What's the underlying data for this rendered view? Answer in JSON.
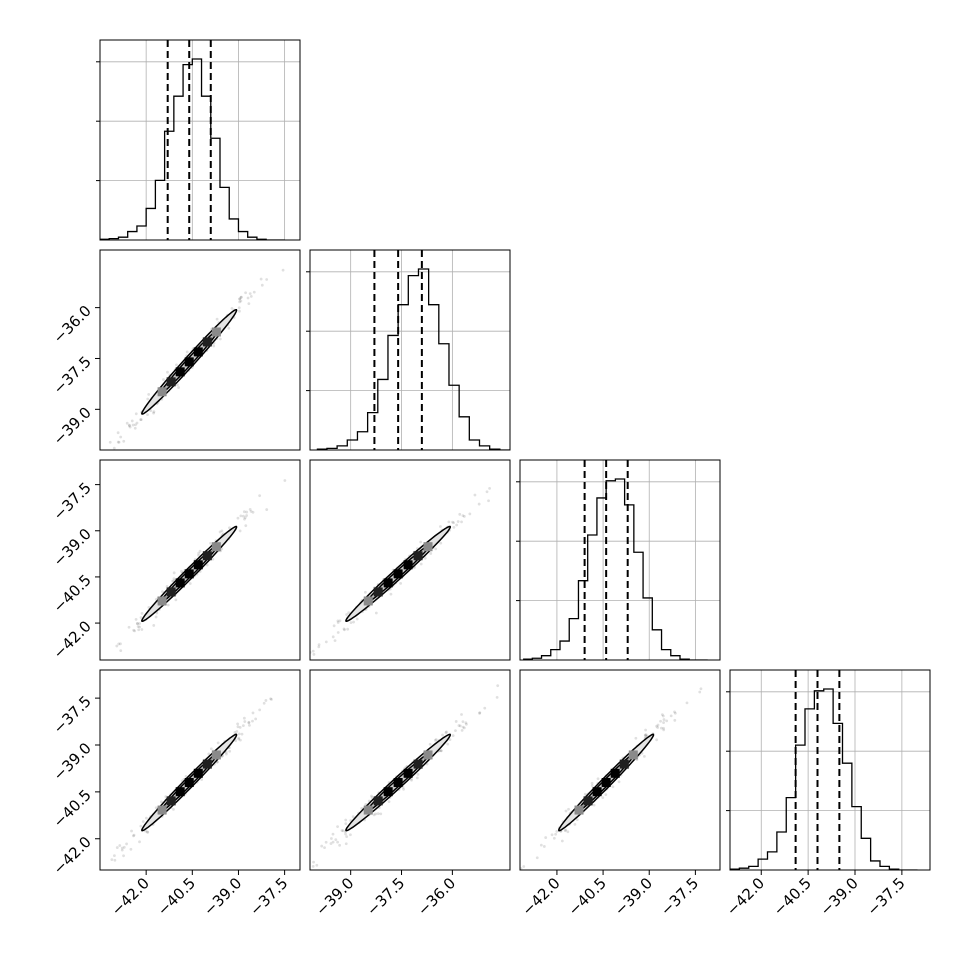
{
  "chart_data": {
    "type": "corner",
    "num_params": 4,
    "param_ranges": [
      [
        -43.5,
        -37.0
      ],
      [
        -40.2,
        -34.3
      ],
      [
        -43.2,
        -36.7
      ],
      [
        -43.0,
        -36.6
      ]
    ],
    "ticks": [
      [
        -42.0,
        -40.5,
        -39.0,
        -37.5
      ],
      [
        -39.0,
        -37.5,
        -36.0
      ],
      [
        -42.0,
        -40.5,
        -39.0,
        -37.5
      ],
      [
        -42.0,
        -40.5,
        -39.0,
        -37.5
      ]
    ],
    "x_tick_labels": [
      [
        "−42.0",
        "−40.5",
        "−39.0",
        "−37.5"
      ],
      [
        "−39.0",
        "−37.5",
        "−36.0"
      ],
      [
        "−42.0",
        "−40.5",
        "−39.0",
        "−37.5"
      ],
      [
        "−42.0",
        "−40.5",
        "−39.0",
        "−37.5"
      ]
    ],
    "y_tick_labels": [
      [],
      [
        "−36.0",
        "−37.5",
        "−39.0"
      ],
      [
        "−37.5",
        "−39.0",
        "−40.5",
        "−42.0"
      ],
      [
        "−37.5",
        "−39.0",
        "−40.5",
        "−42.0"
      ]
    ],
    "quantiles": [
      [
        -41.3,
        -40.6,
        -39.9
      ],
      [
        -38.3,
        -37.6,
        -36.9
      ],
      [
        -41.1,
        -40.4,
        -39.7
      ],
      [
        -40.9,
        -40.2,
        -39.5
      ]
    ],
    "histograms": [
      {
        "min": -43.5,
        "bin_width": 0.3,
        "counts": [
          1,
          2,
          4,
          12,
          20,
          45,
          85,
          155,
          205,
          250,
          258,
          205,
          145,
          75,
          30,
          12,
          4,
          1,
          0,
          0
        ]
      },
      {
        "min": -40.0,
        "bin_width": 0.3,
        "counts": [
          1,
          2,
          5,
          12,
          22,
          45,
          85,
          138,
          175,
          210,
          218,
          175,
          128,
          78,
          40,
          12,
          5,
          1,
          0
        ]
      },
      {
        "min": -43.1,
        "bin_width": 0.3,
        "counts": [
          1,
          2,
          5,
          12,
          22,
          48,
          92,
          145,
          188,
          208,
          210,
          180,
          125,
          72,
          35,
          12,
          5,
          1,
          0,
          0
        ]
      },
      {
        "min": -43.0,
        "bin_width": 0.3,
        "counts": [
          1,
          2,
          4,
          12,
          20,
          42,
          80,
          138,
          178,
          198,
          200,
          162,
          118,
          70,
          35,
          10,
          4,
          1,
          0,
          0
        ]
      }
    ],
    "correlation": 0.99,
    "histogram_grid": true,
    "scatter_grid": false
  }
}
